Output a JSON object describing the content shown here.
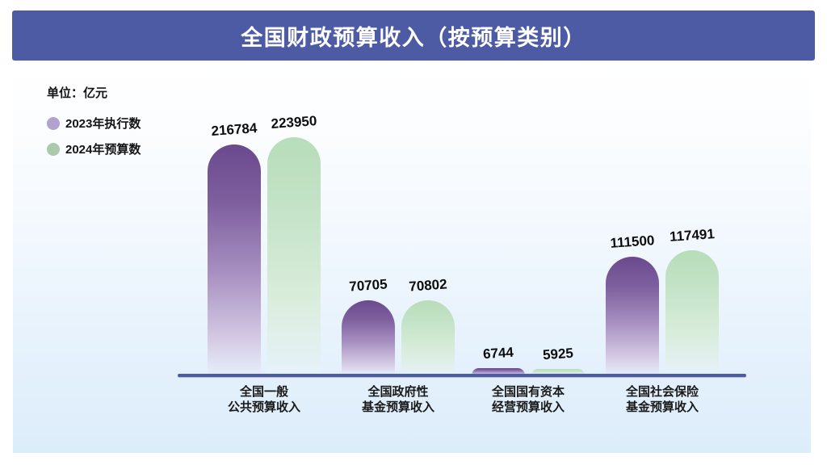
{
  "header": {
    "title": "全国财政预算收入（按预算类别）"
  },
  "panel": {
    "unit_label": "单位：亿元"
  },
  "legend": {
    "items": [
      {
        "label": "2023年执行数",
        "color": "#b1a3cd"
      },
      {
        "label": "2024年预算数",
        "color": "#abcaab"
      }
    ]
  },
  "chart_data": {
    "type": "bar",
    "title": "全国财政预算收入（按预算类别）",
    "unit": "亿元",
    "categories": [
      {
        "line1": "全国一般",
        "line2": "公共预算收入"
      },
      {
        "line1": "全国政府性",
        "line2": "基金预算收入"
      },
      {
        "line1": "全国国有资本",
        "line2": "经营预算收入"
      },
      {
        "line1": "全国社会保险",
        "line2": "基金预算收入"
      }
    ],
    "series": [
      {
        "name": "2023年执行数",
        "values": [
          216784,
          70705,
          6744,
          111500
        ],
        "top_color": "#6a4a8d",
        "bottom_color": "#efeaf6"
      },
      {
        "name": "2024年预算数",
        "values": [
          223950,
          70802,
          5925,
          117491
        ],
        "top_color": "#b7ddb9",
        "bottom_color": "#eef7f0"
      }
    ],
    "ylim": [
      0,
      223950
    ],
    "grid": false,
    "legend_position": "top-left",
    "axis_line_color": "#4d5ba5",
    "header_bg_color": "#4d5ba5"
  }
}
